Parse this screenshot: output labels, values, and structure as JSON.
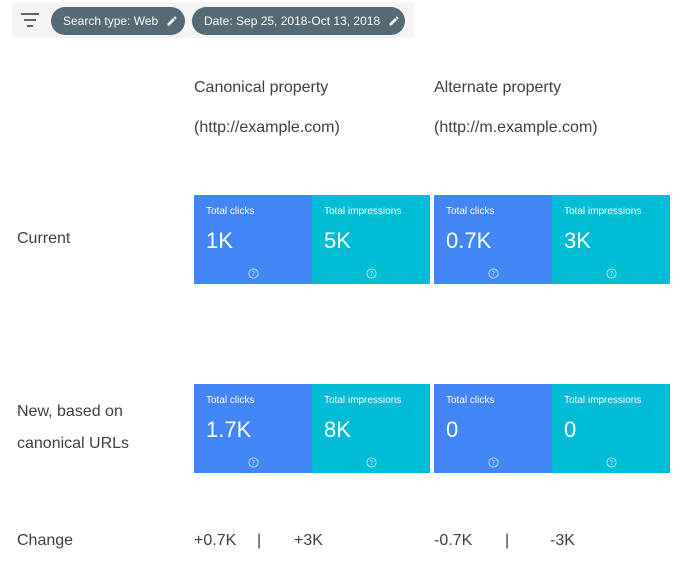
{
  "filters": {
    "search_type": "Search type: Web",
    "date": "Date: Sep 25, 2018-Oct 13, 2018"
  },
  "columns": [
    {
      "title": "Canonical property",
      "subtitle": "(http://example.com)"
    },
    {
      "title": "Alternate property",
      "subtitle": "(http://m.example.com)"
    }
  ],
  "rows": {
    "current": {
      "label": "Current",
      "canonical": {
        "clicks_label": "Total clicks",
        "clicks": "1K",
        "impressions_label": "Total impressions",
        "impressions": "5K"
      },
      "alternate": {
        "clicks_label": "Total clicks",
        "clicks": "0.7K",
        "impressions_label": "Total impressions",
        "impressions": "3K"
      }
    },
    "new": {
      "label_line1": "New, based on",
      "label_line2": "canonical URLs",
      "canonical": {
        "clicks_label": "Total clicks",
        "clicks": "1.7K",
        "impressions_label": "Total impressions",
        "impressions": "8K"
      },
      "alternate": {
        "clicks_label": "Total clicks",
        "clicks": "0",
        "impressions_label": "Total impressions",
        "impressions": "0"
      }
    },
    "change": {
      "label": "Change",
      "canonical_clicks": "+0.7K",
      "canonical_impressions": "+3K",
      "alternate_clicks": "-0.7K",
      "alternate_impressions": "-3K",
      "separator": "|"
    }
  },
  "colors": {
    "clicks_tile": "#4285f4",
    "impressions_tile": "#00bcd4",
    "chip": "#536b76"
  },
  "icons": {
    "filter": "filter-list-icon",
    "edit": "pencil-icon",
    "help": "help-circle-icon"
  }
}
